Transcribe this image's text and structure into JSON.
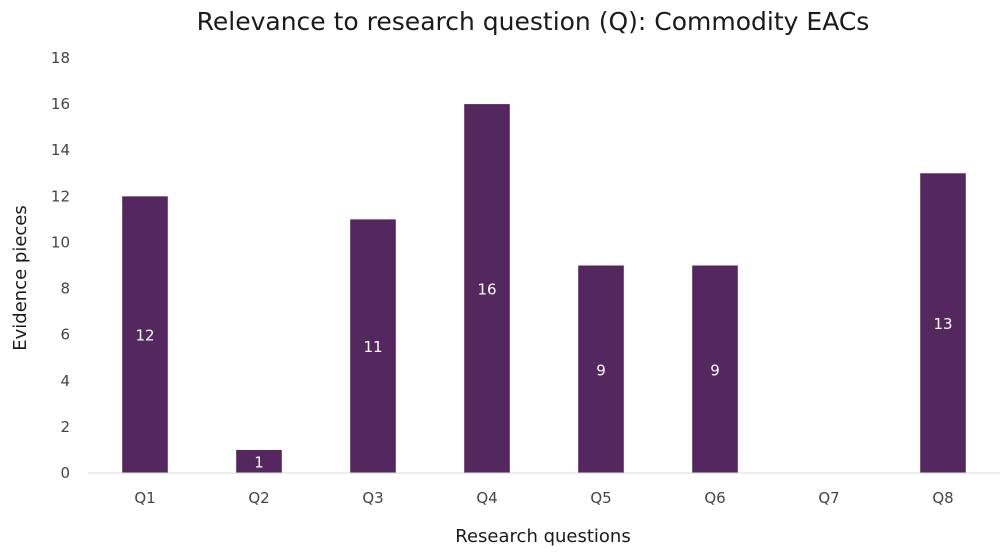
{
  "chart_data": {
    "type": "bar",
    "title": "Relevance to research question (Q): Commodity EACs",
    "xlabel": "Research questions",
    "ylabel": "Evidence pieces",
    "categories": [
      "Q1",
      "Q2",
      "Q3",
      "Q4",
      "Q5",
      "Q6",
      "Q7",
      "Q8"
    ],
    "values": [
      12,
      1,
      11,
      16,
      9,
      9,
      0,
      13
    ],
    "data_labels": [
      "12",
      "1",
      "11",
      "16",
      "9",
      "9",
      "",
      "13"
    ],
    "y_ticks": [
      0,
      2,
      4,
      6,
      8,
      10,
      12,
      14,
      16,
      18
    ],
    "ylim": [
      0,
      18
    ],
    "grid": false,
    "legend": "none",
    "bar_color": "#54275F"
  }
}
